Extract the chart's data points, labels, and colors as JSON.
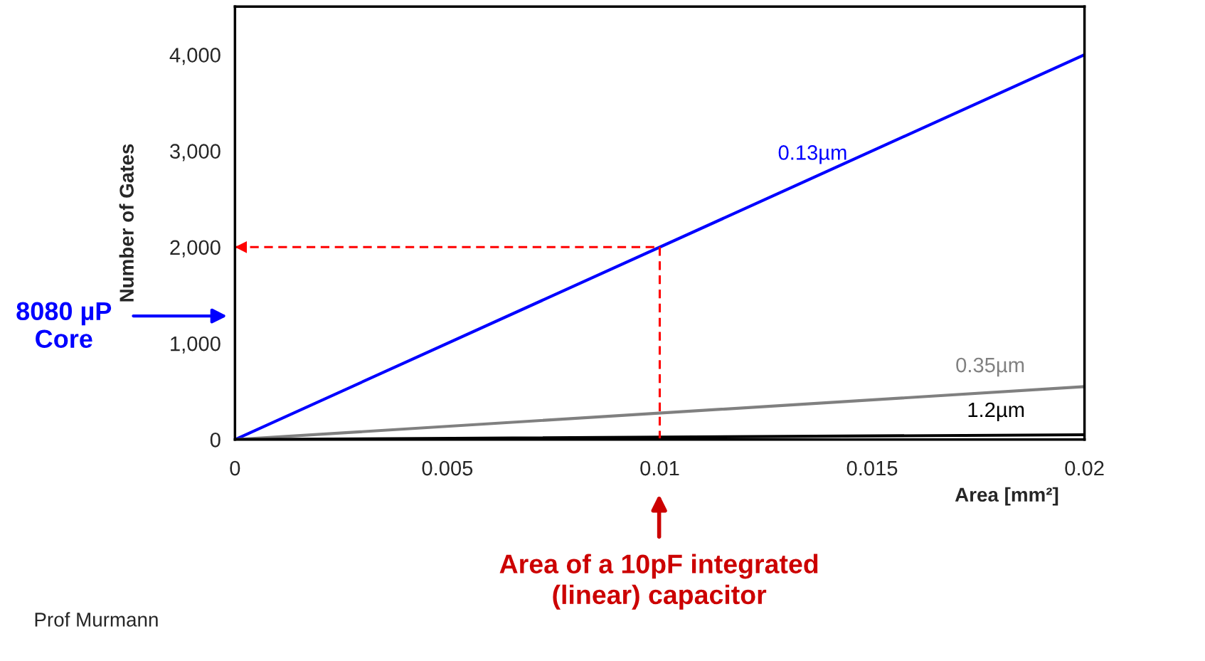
{
  "chart_data": {
    "type": "line",
    "xlabel": "Area [mm²]",
    "ylabel": "Number of Gates",
    "xlim": [
      0,
      0.02
    ],
    "xticks": [
      0,
      0.005,
      0.01,
      0.015,
      0.02
    ],
    "ylim": [
      0,
      4500
    ],
    "yticks": [
      0,
      {
        "value": 1000,
        "label": "1,000"
      },
      {
        "value": 2000,
        "label": "2,000"
      },
      {
        "value": 3000,
        "label": "3,000"
      },
      {
        "value": 4000,
        "label": "4,000"
      }
    ],
    "grid": false,
    "legend": false,
    "marker": "none",
    "line_style": "solid",
    "series": [
      {
        "name": "0.13µm",
        "color": "#0000ff",
        "x": [
          0,
          0.02
        ],
        "values": [
          0,
          4000
        ]
      },
      {
        "name": "0.35µm",
        "color": "#808080",
        "x": [
          0,
          0.02
        ],
        "values": [
          0,
          550
        ]
      },
      {
        "name": "1.2µm",
        "color": "#000000",
        "x": [
          0,
          0.02
        ],
        "values": [
          0,
          50
        ]
      },
      {
        "color": "#ff0000",
        "line_style": "dashed",
        "x": [
          0.01,
          0.01,
          0
        ],
        "values": [
          0,
          2000,
          2000
        ]
      }
    ],
    "annotations": [
      "8080 µP\nCore",
      "Area of a 10pF integrated\n(linear) capacitor",
      "Prof Murmann"
    ]
  }
}
